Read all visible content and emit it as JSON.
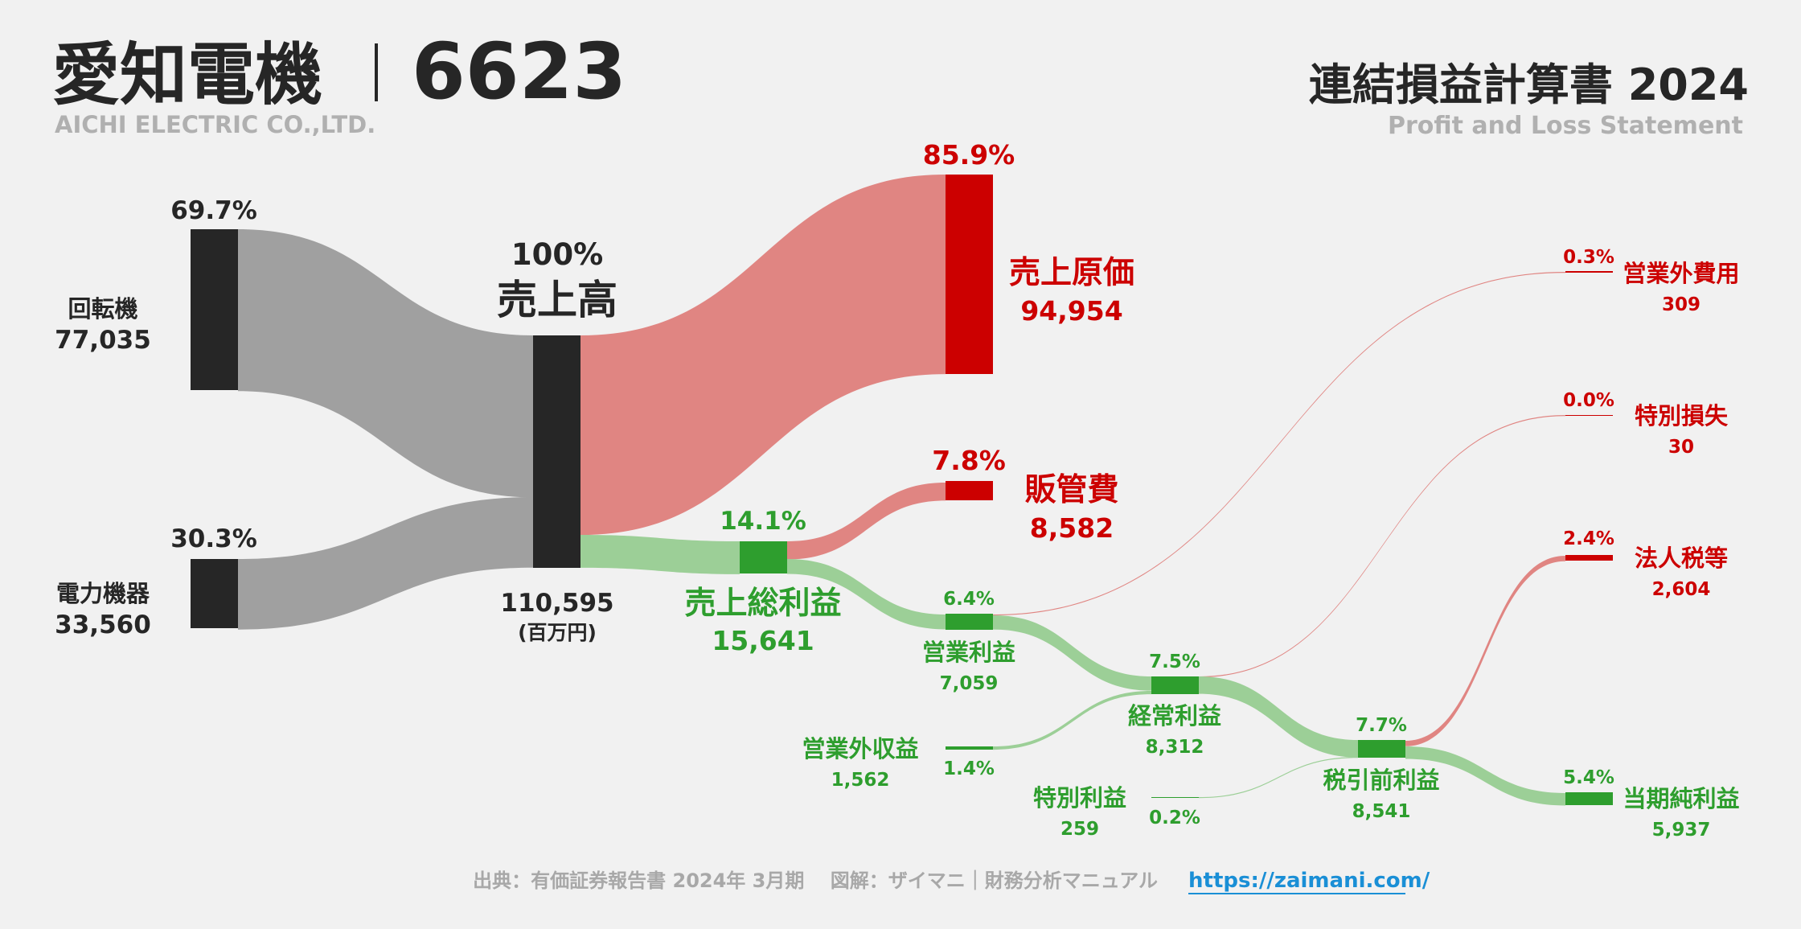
{
  "header": {
    "company": "愛知電機",
    "code": "6623",
    "company_en": "AICHI ELECTRIC CO.,LTD.",
    "statement": "連結損益計算書 2024",
    "statement_en": "Profit and Loss Statement"
  },
  "footer": {
    "source": "出典：有価証券報告書 2024年 3月期　 図解：ザイマニ｜財務分析マニュアル",
    "url": "https://zaimani.com/"
  },
  "colors": {
    "dark": "#262626",
    "gray_flow": "#a0a0a0",
    "red": "#cc0000",
    "red_flow": "#e08582",
    "green": "#2e9e2e",
    "green_flow": "#9ccf97",
    "link": "#1a8fd6"
  },
  "chart_data": {
    "type": "sankey",
    "unit": "(百万円)",
    "nodes": [
      {
        "id": "kaitenki",
        "label": "回転機",
        "value": "77,035",
        "pct": "69.7%"
      },
      {
        "id": "denryoku",
        "label": "電力機器",
        "value": "33,560",
        "pct": "30.3%"
      },
      {
        "id": "uriage",
        "label": "売上高",
        "value": "110,595",
        "pct": "100%"
      },
      {
        "id": "genka",
        "label": "売上原価",
        "value": "94,954",
        "pct": "85.9%"
      },
      {
        "id": "hankan",
        "label": "販管費",
        "value": "8,582",
        "pct": "7.8%"
      },
      {
        "id": "sori",
        "label": "売上総利益",
        "value": "15,641",
        "pct": "14.1%"
      },
      {
        "id": "eigyo",
        "label": "営業利益",
        "value": "7,059",
        "pct": "6.4%"
      },
      {
        "id": "eigyogaihiyo",
        "label": "営業外費用",
        "value": "309",
        "pct": "0.3%"
      },
      {
        "id": "eigyogaishueki",
        "label": "営業外収益",
        "value": "1,562",
        "pct": "1.4%"
      },
      {
        "id": "keijo",
        "label": "経常利益",
        "value": "8,312",
        "pct": "7.5%"
      },
      {
        "id": "tokubetsuson",
        "label": "特別損失",
        "value": "30",
        "pct": "0.0%"
      },
      {
        "id": "tokubetsueki",
        "label": "特別利益",
        "value": "259",
        "pct": "0.2%"
      },
      {
        "id": "zeibiki",
        "label": "税引前利益",
        "value": "8,541",
        "pct": "7.7%"
      },
      {
        "id": "hojinzei",
        "label": "法人税等",
        "value": "2,604",
        "pct": "2.4%"
      },
      {
        "id": "junrieki",
        "label": "当期純利益",
        "value": "5,937",
        "pct": "5.4%"
      }
    ],
    "links": [
      {
        "from": "kaitenki",
        "to": "uriage",
        "value": 77035
      },
      {
        "from": "denryoku",
        "to": "uriage",
        "value": 33560
      },
      {
        "from": "uriage",
        "to": "genka",
        "value": 94954
      },
      {
        "from": "uriage",
        "to": "sori",
        "value": 15641
      },
      {
        "from": "sori",
        "to": "hankan",
        "value": 8582
      },
      {
        "from": "sori",
        "to": "eigyo",
        "value": 7059
      },
      {
        "from": "eigyo",
        "to": "eigyogaihiyo",
        "value": 309
      },
      {
        "from": "eigyo",
        "to": "keijo",
        "value": 6750
      },
      {
        "from": "eigyogaishueki",
        "to": "keijo",
        "value": 1562
      },
      {
        "from": "keijo",
        "to": "tokubetsuson",
        "value": 30
      },
      {
        "from": "keijo",
        "to": "zeibiki",
        "value": 8282
      },
      {
        "from": "tokubetsueki",
        "to": "zeibiki",
        "value": 259
      },
      {
        "from": "zeibiki",
        "to": "hojinzei",
        "value": 2604
      },
      {
        "from": "zeibiki",
        "to": "junrieki",
        "value": 5937
      }
    ]
  }
}
